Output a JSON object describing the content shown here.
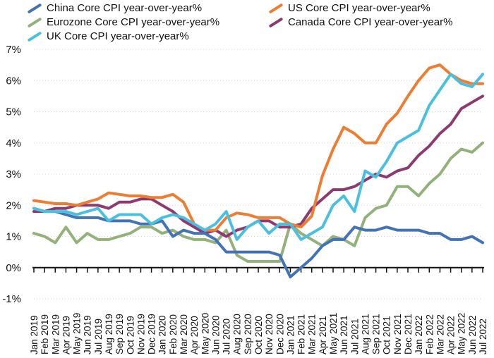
{
  "chart_data": {
    "type": "line",
    "title": "",
    "xlabel": "",
    "ylabel": "",
    "ylim": [
      -1,
      7
    ],
    "y_ticks": [
      "-1%",
      "0%",
      "1%",
      "2%",
      "3%",
      "4%",
      "5%",
      "6%",
      "7%"
    ],
    "categories": [
      "Jan 2019",
      "Feb 2019",
      "Mar 2019",
      "Apr 2019",
      "May 2019",
      "Jun 2019",
      "Jul 2019",
      "Aug 2019",
      "Sep 2019",
      "Oct 2019",
      "Nov 2019",
      "Dec 2019",
      "Jan 2020",
      "Feb 2020",
      "Mar 2020",
      "Apr 2020",
      "May 2020",
      "Jun 2020",
      "Jul 2020",
      "Aug 2020",
      "Sep 2020",
      "Oct 2020",
      "Nov 2020",
      "Dec 2020",
      "Jan 2021",
      "Feb 2021",
      "Mar 2021",
      "Apr 2021",
      "May 2021",
      "Jun 2021",
      "Jul 2021",
      "Aug 2021",
      "Sep 2021",
      "Oct 2021",
      "Nov 2021",
      "Dec 2021",
      "Jan 2022",
      "Feb 2022",
      "Mar 2022",
      "Apr 2022",
      "May 2022",
      "Jun 2022",
      "Jul 2022"
    ],
    "series": [
      {
        "name": "China Core CPI year-over-year%",
        "color": "#4472b6",
        "values": [
          1.9,
          1.8,
          1.8,
          1.7,
          1.6,
          1.6,
          1.6,
          1.5,
          1.5,
          1.5,
          1.4,
          1.4,
          1.5,
          1.0,
          1.2,
          1.1,
          1.1,
          0.9,
          0.5,
          0.5,
          0.5,
          0.5,
          0.5,
          0.4,
          -0.3,
          0.0,
          0.3,
          0.7,
          0.9,
          0.9,
          1.3,
          1.2,
          1.2,
          1.3,
          1.2,
          1.2,
          1.2,
          1.1,
          1.1,
          0.9,
          0.9,
          1.0,
          0.8
        ]
      },
      {
        "name": "US Core CPI year-over-year%",
        "color": "#ed7d31",
        "values": [
          2.15,
          2.1,
          2.05,
          2.05,
          2.0,
          2.1,
          2.2,
          2.4,
          2.35,
          2.3,
          2.3,
          2.25,
          2.25,
          2.35,
          2.1,
          1.4,
          1.2,
          1.2,
          1.6,
          1.75,
          1.7,
          1.6,
          1.6,
          1.6,
          1.4,
          1.3,
          1.65,
          2.95,
          3.8,
          4.5,
          4.3,
          4.0,
          4.0,
          4.6,
          4.95,
          5.5,
          6.0,
          6.4,
          6.5,
          6.2,
          6.0,
          5.9,
          5.9
        ]
      },
      {
        "name": "Eurozone Core CPI year-over-year%",
        "color": "#93b17a",
        "values": [
          1.1,
          1.0,
          0.8,
          1.3,
          0.8,
          1.1,
          0.9,
          0.9,
          1.0,
          1.1,
          1.3,
          1.3,
          1.1,
          1.2,
          1.0,
          0.9,
          0.9,
          0.8,
          1.2,
          0.4,
          0.2,
          0.2,
          0.2,
          0.2,
          1.4,
          1.1,
          0.9,
          0.7,
          1.0,
          0.9,
          0.7,
          1.6,
          1.9,
          2.0,
          2.6,
          2.6,
          2.3,
          2.7,
          3.0,
          3.5,
          3.8,
          3.7,
          4.0
        ]
      },
      {
        "name": "Canada Core CPI year-over-year%",
        "color": "#8c3a6f",
        "values": [
          1.8,
          1.8,
          1.9,
          1.9,
          2.0,
          2.0,
          2.0,
          1.9,
          2.1,
          2.1,
          2.2,
          2.2,
          2.0,
          1.8,
          1.5,
          1.3,
          1.1,
          1.2,
          1.0,
          1.2,
          1.3,
          1.5,
          1.5,
          1.3,
          1.3,
          1.4,
          1.9,
          2.2,
          2.5,
          2.5,
          2.6,
          2.8,
          3.0,
          2.9,
          3.1,
          3.2,
          3.6,
          3.9,
          4.3,
          4.6,
          5.1,
          5.3,
          5.5
        ]
      },
      {
        "name": "UK Core CPI year-over-year%",
        "color": "#4bc0de",
        "values": [
          1.9,
          1.8,
          1.8,
          1.8,
          1.7,
          1.8,
          1.9,
          1.5,
          1.7,
          1.7,
          1.7,
          1.4,
          1.6,
          1.7,
          1.6,
          1.4,
          1.2,
          1.4,
          1.8,
          0.9,
          1.3,
          1.5,
          1.1,
          1.4,
          1.4,
          0.9,
          1.1,
          1.3,
          2.0,
          2.3,
          1.8,
          3.1,
          2.9,
          3.4,
          4.0,
          4.2,
          4.4,
          5.2,
          5.7,
          6.2,
          5.9,
          5.8,
          6.2
        ]
      }
    ]
  }
}
